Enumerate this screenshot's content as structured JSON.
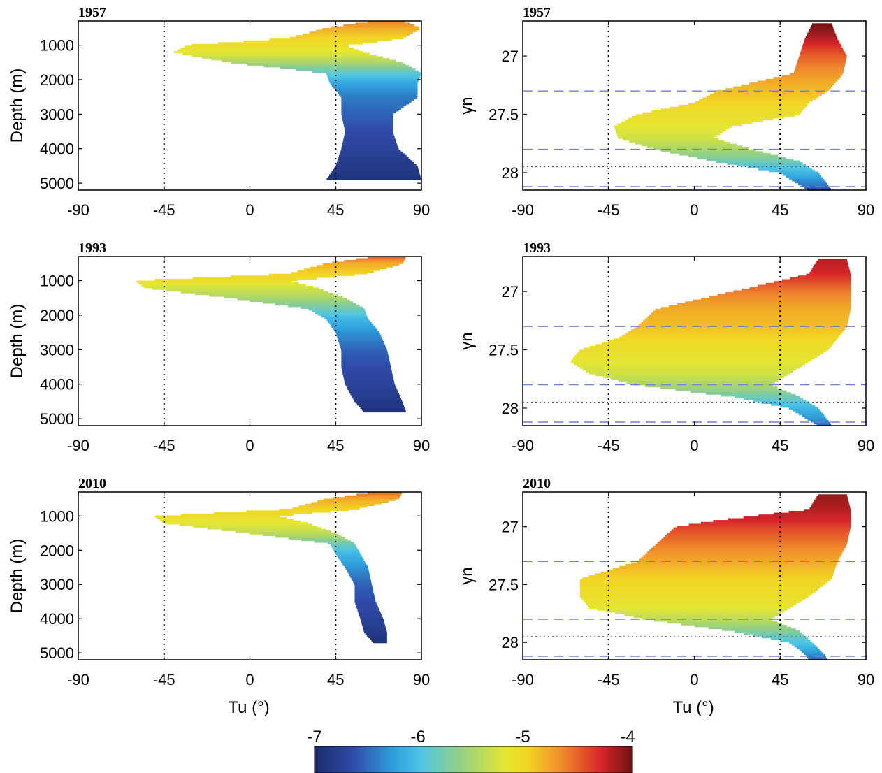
{
  "figure": {
    "xlabel": "Tu (°)",
    "colorbar": {
      "min": -7,
      "max": -4,
      "ticks": [
        "-7",
        "-6",
        "-5",
        "-4"
      ]
    }
  },
  "chart_data": [
    {
      "type": "area",
      "panel": "left-1957",
      "year": "1957",
      "xlabel": "",
      "ylabel": "Depth (m)",
      "xlim": [
        -90,
        90
      ],
      "ylim": [
        5200,
        300
      ],
      "x_ticks": [
        "-90",
        "-45",
        "0",
        "45",
        "90"
      ],
      "y_ticks": [
        {
          "v": 1000,
          "label": "1000"
        },
        {
          "v": 2000,
          "label": "2000"
        },
        {
          "v": 3000,
          "label": "3000"
        },
        {
          "v": 4000,
          "label": "4000"
        },
        {
          "v": 5000,
          "label": "5000"
        }
      ],
      "reference_lines_x": [
        -45,
        45
      ],
      "profile": {
        "y": [
          300,
          500,
          800,
          1000,
          1200,
          1500,
          1800,
          2100,
          2500,
          3000,
          3500,
          4000,
          4500,
          4900
        ],
        "x_min": [
          65,
          40,
          20,
          -33,
          -40,
          -10,
          40,
          42,
          48,
          48,
          50,
          48,
          45,
          40
        ],
        "x_max": [
          80,
          90,
          80,
          50,
          60,
          80,
          90,
          88,
          88,
          75,
          75,
          78,
          88,
          90
        ],
        "c": [
          -4.6,
          -4.8,
          -5.0,
          -5.1,
          -5.2,
          -5.5,
          -5.9,
          -6.2,
          -6.4,
          -6.5,
          -6.6,
          -6.7,
          -6.8,
          -6.9
        ]
      }
    },
    {
      "type": "area",
      "panel": "right-1957",
      "year": "1957",
      "xlabel": "",
      "ylabel": "γn",
      "xlim": [
        -90,
        90
      ],
      "ylim": [
        28.15,
        26.7
      ],
      "x_ticks": [
        "-90",
        "-45",
        "0",
        "45",
        "90"
      ],
      "y_ticks": [
        {
          "v": 27,
          "label": "27"
        },
        {
          "v": 27.5,
          "label": "27.5"
        },
        {
          "v": 28,
          "label": "28"
        }
      ],
      "reference_lines_x": [
        -45,
        45
      ],
      "dashed_lines_y": [
        27.3,
        27.8,
        28.12
      ],
      "dotted_lines_y": [
        27.95
      ],
      "profile": {
        "y": [
          26.72,
          26.85,
          27.0,
          27.15,
          27.3,
          27.4,
          27.5,
          27.6,
          27.7,
          27.8,
          27.9,
          28.0,
          28.1,
          28.15
        ],
        "x_min": [
          62,
          58,
          55,
          52,
          12,
          0,
          -30,
          -42,
          -40,
          -20,
          10,
          45,
          55,
          60
        ],
        "x_max": [
          72,
          75,
          80,
          78,
          70,
          60,
          55,
          20,
          10,
          30,
          55,
          65,
          70,
          72
        ],
        "c": [
          -4.0,
          -4.2,
          -4.5,
          -4.7,
          -4.9,
          -5.0,
          -5.1,
          -5.2,
          -5.3,
          -5.5,
          -5.8,
          -6.1,
          -6.4,
          -6.6
        ]
      }
    },
    {
      "type": "area",
      "panel": "left-1993",
      "year": "1993",
      "xlabel": "",
      "ylabel": "Depth (m)",
      "xlim": [
        -90,
        90
      ],
      "ylim": [
        5200,
        300
      ],
      "x_ticks": [
        "-90",
        "-45",
        "0",
        "45",
        "90"
      ],
      "y_ticks": [
        {
          "v": 1000,
          "label": "1000"
        },
        {
          "v": 2000,
          "label": "2000"
        },
        {
          "v": 3000,
          "label": "3000"
        },
        {
          "v": 4000,
          "label": "4000"
        },
        {
          "v": 5000,
          "label": "5000"
        }
      ],
      "reference_lines_x": [
        -45,
        45
      ],
      "profile": {
        "y": [
          300,
          500,
          800,
          1000,
          1200,
          1500,
          1800,
          2100,
          2500,
          3000,
          3500,
          4000,
          4500,
          4800
        ],
        "x_min": [
          65,
          40,
          20,
          -60,
          -55,
          -10,
          30,
          40,
          45,
          48,
          48,
          50,
          55,
          60
        ],
        "x_max": [
          82,
          80,
          60,
          20,
          35,
          50,
          60,
          62,
          68,
          72,
          74,
          76,
          80,
          82
        ],
        "c": [
          -4.5,
          -4.8,
          -5.0,
          -5.1,
          -5.3,
          -5.5,
          -5.8,
          -6.1,
          -6.3,
          -6.5,
          -6.6,
          -6.7,
          -6.8,
          -6.9
        ]
      }
    },
    {
      "type": "area",
      "panel": "right-1993",
      "year": "1993",
      "xlabel": "",
      "ylabel": "γn",
      "xlim": [
        -90,
        90
      ],
      "ylim": [
        28.15,
        26.7
      ],
      "x_ticks": [
        "-90",
        "-45",
        "0",
        "45",
        "90"
      ],
      "y_ticks": [
        {
          "v": 27,
          "label": "27"
        },
        {
          "v": 27.5,
          "label": "27.5"
        },
        {
          "v": 28,
          "label": "28"
        }
      ],
      "reference_lines_x": [
        -45,
        45
      ],
      "dashed_lines_y": [
        27.3,
        27.8,
        28.12
      ],
      "dotted_lines_y": [
        27.95
      ],
      "profile": {
        "y": [
          26.72,
          26.85,
          27.0,
          27.15,
          27.3,
          27.4,
          27.5,
          27.6,
          27.7,
          27.8,
          27.9,
          28.0,
          28.1,
          28.15
        ],
        "x_min": [
          65,
          60,
          20,
          -20,
          -30,
          -40,
          -60,
          -65,
          -55,
          -30,
          20,
          50,
          60,
          65
        ],
        "x_max": [
          80,
          82,
          82,
          82,
          80,
          75,
          70,
          60,
          50,
          40,
          55,
          65,
          70,
          72
        ],
        "c": [
          -4.2,
          -4.3,
          -4.6,
          -4.8,
          -4.9,
          -5.0,
          -5.1,
          -5.2,
          -5.3,
          -5.5,
          -5.8,
          -6.1,
          -6.3,
          -6.5
        ]
      }
    },
    {
      "type": "area",
      "panel": "left-2010",
      "year": "2010",
      "xlabel": "Tu (°)",
      "ylabel": "Depth (m)",
      "xlim": [
        -90,
        90
      ],
      "ylim": [
        5200,
        300
      ],
      "x_ticks": [
        "-90",
        "-45",
        "0",
        "45",
        "90"
      ],
      "y_ticks": [
        {
          "v": 1000,
          "label": "1000"
        },
        {
          "v": 2000,
          "label": "2000"
        },
        {
          "v": 3000,
          "label": "3000"
        },
        {
          "v": 4000,
          "label": "4000"
        },
        {
          "v": 5000,
          "label": "5000"
        }
      ],
      "reference_lines_x": [
        -45,
        45
      ],
      "profile": {
        "y": [
          300,
          500,
          800,
          1000,
          1200,
          1500,
          1800,
          2100,
          2500,
          3000,
          3500,
          4000,
          4400,
          4700
        ],
        "x_min": [
          65,
          40,
          20,
          -50,
          -45,
          0,
          42,
          45,
          50,
          55,
          55,
          58,
          60,
          65
        ],
        "x_max": [
          80,
          78,
          55,
          15,
          30,
          45,
          55,
          58,
          62,
          64,
          66,
          70,
          72,
          72
        ],
        "c": [
          -4.5,
          -4.8,
          -5.0,
          -5.1,
          -5.2,
          -5.4,
          -5.8,
          -6.1,
          -6.3,
          -6.5,
          -6.6,
          -6.7,
          -6.8,
          -6.9
        ]
      }
    },
    {
      "type": "area",
      "panel": "right-2010",
      "year": "2010",
      "xlabel": "Tu (°)",
      "ylabel": "γn",
      "xlim": [
        -90,
        90
      ],
      "ylim": [
        28.15,
        26.7
      ],
      "x_ticks": [
        "-90",
        "-45",
        "0",
        "45",
        "90"
      ],
      "y_ticks": [
        {
          "v": 27,
          "label": "27"
        },
        {
          "v": 27.5,
          "label": "27.5"
        },
        {
          "v": 28,
          "label": "28"
        }
      ],
      "reference_lines_x": [
        -45,
        45
      ],
      "dashed_lines_y": [
        27.3,
        27.8,
        28.12
      ],
      "dotted_lines_y": [
        27.95
      ],
      "profile": {
        "y": [
          26.72,
          26.85,
          26.95,
          27.0,
          27.15,
          27.3,
          27.45,
          27.6,
          27.7,
          27.8,
          27.9,
          28.0,
          28.1,
          28.15
        ],
        "x_min": [
          65,
          60,
          10,
          -10,
          -20,
          -30,
          -60,
          -60,
          -55,
          -25,
          20,
          50,
          58,
          60
        ],
        "x_max": [
          80,
          82,
          82,
          82,
          80,
          75,
          72,
          60,
          50,
          40,
          55,
          62,
          68,
          70
        ],
        "c": [
          -4.1,
          -4.2,
          -4.3,
          -4.4,
          -4.6,
          -4.8,
          -5.0,
          -5.1,
          -5.2,
          -5.4,
          -5.7,
          -6.0,
          -6.3,
          -6.5
        ]
      }
    }
  ]
}
